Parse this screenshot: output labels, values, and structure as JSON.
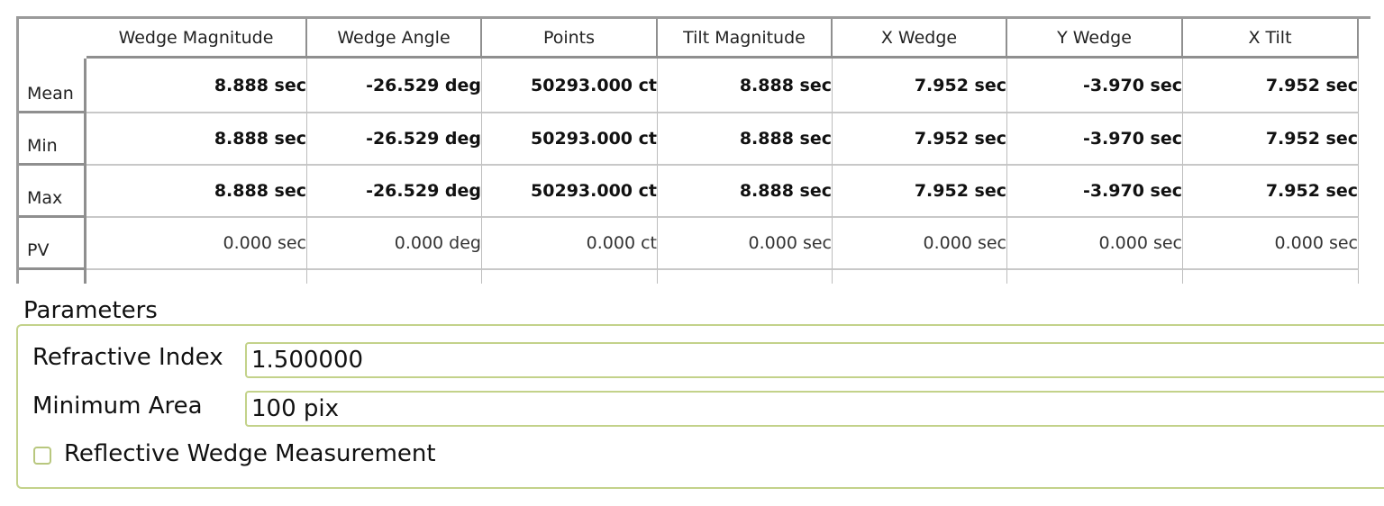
{
  "table": {
    "columns": [
      "Wedge Magnitude",
      "Wedge Angle",
      "Points",
      "Tilt Magnitude",
      "X Wedge",
      "Y Wedge",
      "X Tilt"
    ],
    "rows": [
      {
        "label": "Mean",
        "values": [
          "8.888 sec",
          "-26.529 deg",
          "50293.000 ct",
          "8.888 sec",
          "7.952 sec",
          "-3.970 sec",
          "7.952 sec"
        ],
        "bold": true
      },
      {
        "label": "Min",
        "values": [
          "8.888 sec",
          "-26.529 deg",
          "50293.000 ct",
          "8.888 sec",
          "7.952 sec",
          "-3.970 sec",
          "7.952 sec"
        ],
        "bold": true
      },
      {
        "label": "Max",
        "values": [
          "8.888 sec",
          "-26.529 deg",
          "50293.000 ct",
          "8.888 sec",
          "7.952 sec",
          "-3.970 sec",
          "7.952 sec"
        ],
        "bold": true
      },
      {
        "label": "PV",
        "values": [
          "0.000 sec",
          "0.000 deg",
          "0.000 ct",
          "0.000 sec",
          "0.000 sec",
          "0.000 sec",
          "0.000 sec"
        ],
        "bold": false
      }
    ]
  },
  "parameters": {
    "title": "Parameters",
    "refractive_index_label": "Refractive Index",
    "refractive_index_value": "1.500000",
    "minimum_area_label": "Minimum Area",
    "minimum_area_value": "100 pix",
    "reflective_label": "Reflective Wedge Measurement",
    "reflective_checked": false
  },
  "colors": {
    "group_border": "#c3d28a",
    "grid": "#8f8f8f"
  }
}
